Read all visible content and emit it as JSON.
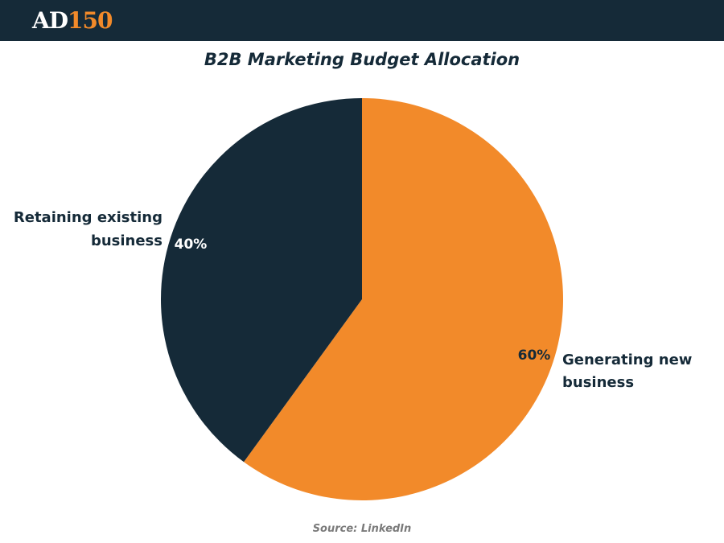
{
  "logo": {
    "part1": "AD",
    "part2": "150"
  },
  "colors": {
    "dark": "#152a38",
    "accent": "#f28a2a"
  },
  "chart_data": {
    "type": "pie",
    "title": "B2B Marketing Budget Allocation",
    "slices": [
      {
        "label_line1": "Generating new",
        "label_line2": "business",
        "value": 60,
        "value_label": "60%",
        "color": "#f28a2a"
      },
      {
        "label_line1": "Retaining existing",
        "label_line2": "business",
        "value": 40,
        "value_label": "40%",
        "color": "#152a38"
      }
    ],
    "start": "12 o'clock",
    "direction": "clockwise"
  },
  "source": "Source: LinkedIn"
}
